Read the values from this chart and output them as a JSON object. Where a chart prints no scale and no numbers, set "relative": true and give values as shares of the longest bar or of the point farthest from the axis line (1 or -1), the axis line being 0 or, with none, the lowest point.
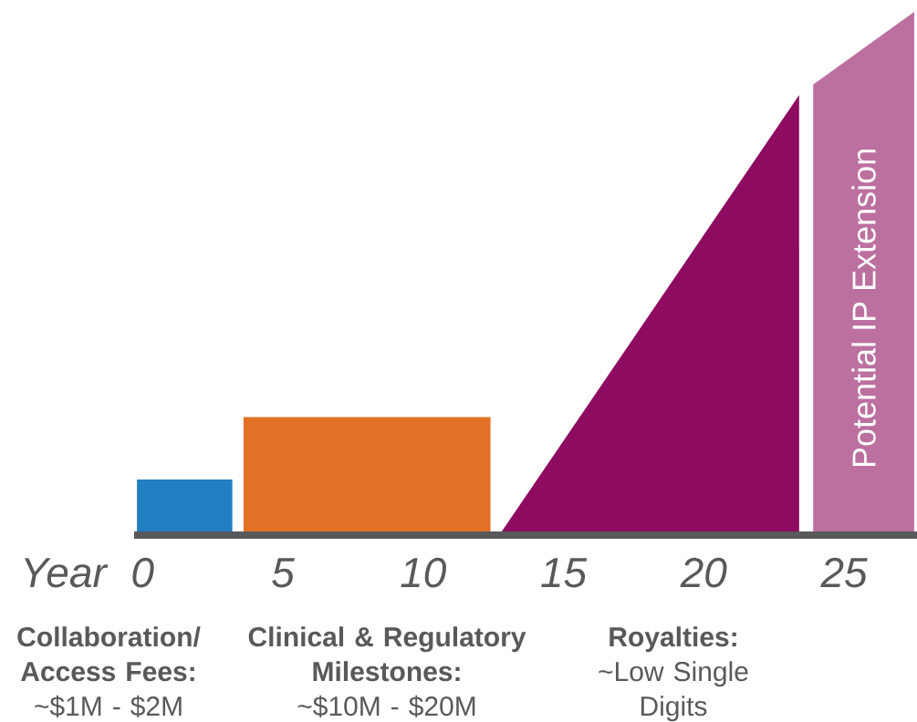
{
  "chart_data": {
    "type": "area",
    "relative": true,
    "xlabel": "Year",
    "xlim": [
      -0.3,
      27.6
    ],
    "xticks": [
      0,
      5,
      10,
      15,
      20,
      25
    ],
    "series": [
      {
        "color": "#217fc2",
        "x": [
          -0.2,
          -0.2,
          3.2,
          3.2
        ],
        "values": [
          0,
          0.1,
          0.1,
          0
        ]
      },
      {
        "color": "#e37125",
        "x": [
          3.6,
          3.6,
          12.4,
          12.4
        ],
        "values": [
          0,
          0.22,
          0.22,
          0
        ]
      },
      {
        "color": "#8e0b62",
        "x": [
          12.8,
          23.4,
          23.4
        ],
        "values": [
          0,
          0.84,
          0
        ]
      },
      {
        "name": "Potential IP Extension",
        "color": "#bc70a0",
        "x": [
          23.9,
          23.9,
          27.5,
          27.5
        ],
        "values": [
          0,
          0.86,
          1,
          0
        ]
      }
    ],
    "annotations": [
      "Collaboration/ Access Fees:",
      "~$1M - $2M",
      "Clinical & Regulatory Milestones:",
      "~$10M - $20M",
      "Royalties:",
      "~Low Single Digits"
    ]
  }
}
